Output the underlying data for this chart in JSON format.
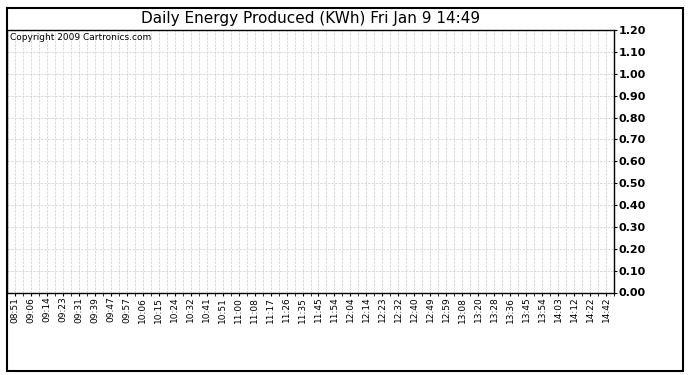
{
  "title": "Daily Energy Produced (KWh) Fri Jan 9 14:49",
  "copyright_text": "Copyright 2009 Cartronics.com",
  "x_labels": [
    "08:51",
    "09:06",
    "09:14",
    "09:23",
    "09:31",
    "09:39",
    "09:47",
    "09:57",
    "10:06",
    "10:15",
    "10:24",
    "10:32",
    "10:41",
    "10:51",
    "11:00",
    "11:08",
    "11:17",
    "11:26",
    "11:35",
    "11:45",
    "11:54",
    "12:04",
    "12:14",
    "12:23",
    "12:32",
    "12:40",
    "12:49",
    "12:59",
    "13:08",
    "13:20",
    "13:28",
    "13:36",
    "13:45",
    "13:54",
    "14:03",
    "14:12",
    "14:22",
    "14:42"
  ],
  "y_min": 0.0,
  "y_max": 1.2,
  "y_ticks": [
    0.0,
    0.1,
    0.2,
    0.3,
    0.4,
    0.5,
    0.6,
    0.7,
    0.8,
    0.9,
    1.0,
    1.1,
    1.2
  ],
  "background_color": "#ffffff",
  "plot_bg_color": "#ffffff",
  "grid_color": "#cccccc",
  "title_fontsize": 11,
  "copyright_fontsize": 6.5,
  "tick_fontsize": 6.5,
  "ytick_fontsize": 8,
  "border_color": "#000000"
}
